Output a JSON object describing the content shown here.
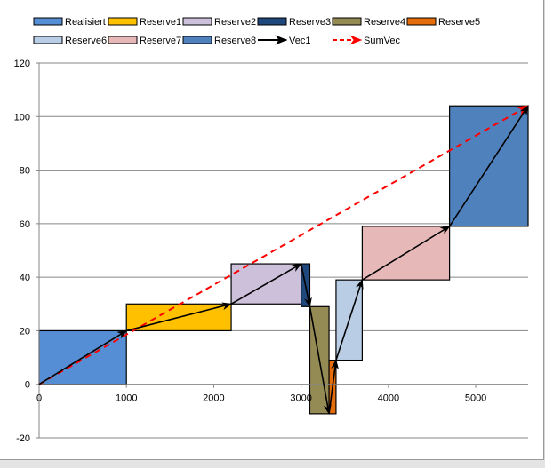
{
  "chart_data": {
    "type": "bar",
    "title": "",
    "xlabel": "",
    "ylabel": "",
    "xlim": [
      0,
      5600
    ],
    "ylim": [
      -20,
      120
    ],
    "x_ticks": [
      0,
      1000,
      2000,
      3000,
      4000,
      5000
    ],
    "y_ticks": [
      -20,
      0,
      20,
      40,
      60,
      80,
      100,
      120
    ],
    "grid": "horizontal",
    "legend_position": "top",
    "legend": [
      {
        "label": "Realisiert",
        "kind": "box",
        "color": "#558ed5"
      },
      {
        "label": "Reserve1",
        "kind": "box",
        "color": "#ffc000"
      },
      {
        "label": "Reserve2",
        "kind": "box",
        "color": "#ccc0da"
      },
      {
        "label": "Reserve3",
        "kind": "box",
        "color": "#1f497d"
      },
      {
        "label": "Reserve4",
        "kind": "box",
        "color": "#948a54"
      },
      {
        "label": "Reserve5",
        "kind": "box",
        "color": "#e46c0a"
      },
      {
        "label": "Reserve6",
        "kind": "box",
        "color": "#b9cde5"
      },
      {
        "label": "Reserve7",
        "kind": "box",
        "color": "#e6b9b8"
      },
      {
        "label": "Reserve8",
        "kind": "box",
        "color": "#4f81bd"
      },
      {
        "label": "Vec1",
        "kind": "arrow",
        "color": "#000000"
      },
      {
        "label": "SumVec",
        "kind": "dashed-arrow",
        "color": "#ff0000"
      }
    ],
    "boxes": [
      {
        "name": "Realisiert",
        "x0": 0,
        "x1": 1000,
        "y0": 0,
        "y1": 20,
        "color": "#558ed5"
      },
      {
        "name": "Reserve1",
        "x0": 1000,
        "x1": 2200,
        "y0": 20,
        "y1": 30,
        "color": "#ffc000"
      },
      {
        "name": "Reserve2",
        "x0": 2200,
        "x1": 3000,
        "y0": 30,
        "y1": 45,
        "color": "#ccc0da"
      },
      {
        "name": "Reserve3",
        "x0": 3000,
        "x1": 3100,
        "y0": 29,
        "y1": 45,
        "color": "#1f497d"
      },
      {
        "name": "Reserve4",
        "x0": 3100,
        "x1": 3320,
        "y0": -11,
        "y1": 29,
        "color": "#948a54"
      },
      {
        "name": "Reserve5",
        "x0": 3320,
        "x1": 3400,
        "y0": -11,
        "y1": 9,
        "color": "#e46c0a"
      },
      {
        "name": "Reserve6",
        "x0": 3400,
        "x1": 3700,
        "y0": 9,
        "y1": 39,
        "color": "#b9cde5"
      },
      {
        "name": "Reserve7",
        "x0": 3700,
        "x1": 4700,
        "y0": 39,
        "y1": 59,
        "color": "#e6b9b8"
      },
      {
        "name": "Reserve8",
        "x0": 4700,
        "x1": 5600,
        "y0": 59,
        "y1": 104,
        "color": "#4f81bd"
      }
    ],
    "vec1": [
      [
        0,
        0
      ],
      [
        1000,
        20
      ],
      [
        2200,
        30
      ],
      [
        3000,
        45
      ],
      [
        3100,
        29
      ],
      [
        3320,
        -11
      ],
      [
        3400,
        9
      ],
      [
        3700,
        39
      ],
      [
        4700,
        59
      ],
      [
        5600,
        104
      ]
    ],
    "sumvec": [
      [
        0,
        0
      ],
      [
        5600,
        104
      ]
    ]
  }
}
